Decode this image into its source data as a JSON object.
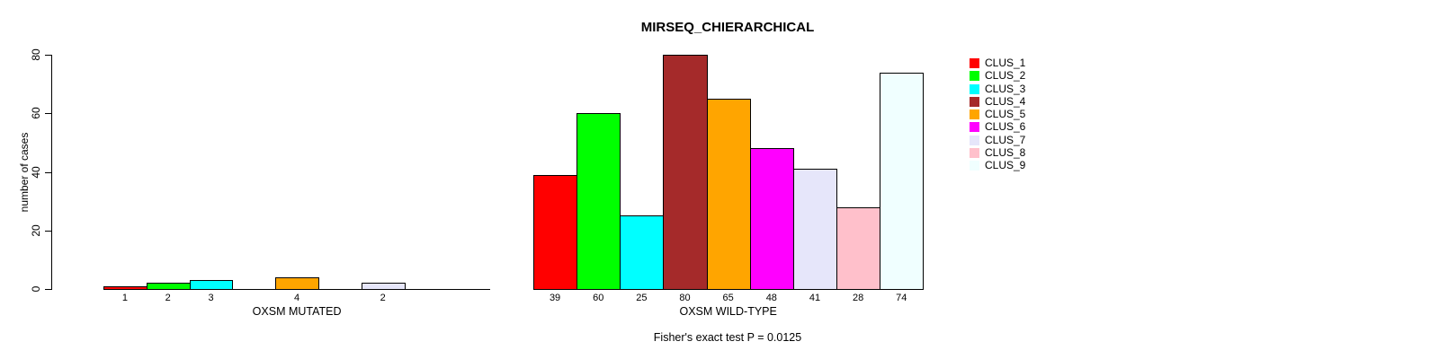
{
  "chart_data": {
    "type": "bar",
    "title": "MIRSEQ_CHIERARCHICAL",
    "ylabel": "number of cases",
    "ylim": [
      0,
      80
    ],
    "yticks": [
      0,
      20,
      40,
      60,
      80
    ],
    "grid": false,
    "legend_position": "right",
    "clusters": [
      {
        "name": "CLUS_1",
        "color": "#FF0000"
      },
      {
        "name": "CLUS_2",
        "color": "#00FF00"
      },
      {
        "name": "CLUS_3",
        "color": "#00FFFF"
      },
      {
        "name": "CLUS_4",
        "color": "#A52A2A"
      },
      {
        "name": "CLUS_5",
        "color": "#FFA500"
      },
      {
        "name": "CLUS_6",
        "color": "#FF00FF"
      },
      {
        "name": "CLUS_7",
        "color": "#E6E6FA"
      },
      {
        "name": "CLUS_8",
        "color": "#FFC0CB"
      },
      {
        "name": "CLUS_9",
        "color": "#F0FFFF"
      }
    ],
    "groups": [
      {
        "xlabel": "OXSM MUTATED",
        "values": [
          1,
          2,
          3,
          0,
          4,
          0,
          2,
          0,
          0
        ],
        "bar_labels": [
          "1",
          "2",
          "3",
          "",
          "4",
          "",
          "2",
          "",
          ""
        ]
      },
      {
        "xlabel": "OXSM WILD-TYPE",
        "values": [
          39,
          60,
          25,
          80,
          65,
          48,
          41,
          28,
          74
        ],
        "bar_labels": [
          "39",
          "60",
          "25",
          "80",
          "65",
          "48",
          "41",
          "28",
          "74"
        ]
      }
    ],
    "annotation": "Fisher's exact test P = 0.0125"
  }
}
